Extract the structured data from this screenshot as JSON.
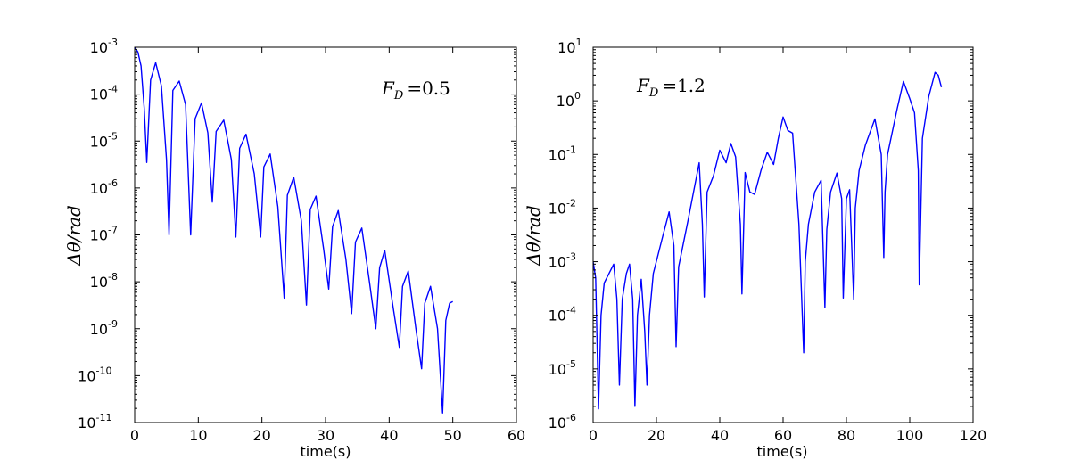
{
  "chart_data": [
    {
      "type": "line",
      "xlabel": "time(s)",
      "ylabel": "Δθ/rad",
      "annotation": {
        "text": "F_D =0.5",
        "symbol": "F",
        "subscript": "D",
        "value": "=0.5"
      },
      "xlim": [
        0,
        60
      ],
      "ylim": [
        1e-11,
        0.001
      ],
      "yscale": "log",
      "xticks": [
        "0",
        "10",
        "20",
        "30",
        "40",
        "50",
        "60"
      ],
      "yticks": [
        {
          "base": "10",
          "exp": "-11"
        },
        {
          "base": "10",
          "exp": "-10"
        },
        {
          "base": "10",
          "exp": "-9"
        },
        {
          "base": "10",
          "exp": "-8"
        },
        {
          "base": "10",
          "exp": "-7"
        },
        {
          "base": "10",
          "exp": "-6"
        },
        {
          "base": "10",
          "exp": "-5"
        },
        {
          "base": "10",
          "exp": "-4"
        },
        {
          "base": "10",
          "exp": "-3"
        }
      ],
      "color": "#0000ff",
      "series": [
        {
          "x": [
            0,
            0.5,
            1.0,
            1.5,
            1.9,
            2.5,
            3.3,
            4.2,
            5.0,
            5.4,
            6.0,
            7.0,
            8.0,
            8.8,
            9.5,
            10.5,
            11.5,
            12.2,
            12.8,
            14.0,
            15.2,
            15.9,
            16.5,
            17.5,
            18.8,
            19.8,
            20.3,
            21.3,
            22.5,
            23.5,
            24.0,
            25.0,
            26.2,
            27.0,
            27.6,
            28.5,
            29.7,
            30.5,
            31.1,
            32.0,
            33.2,
            34.1,
            34.7,
            35.7,
            36.9,
            37.9,
            38.5,
            39.3,
            40.6,
            41.6,
            42.1,
            43.0,
            44.2,
            45.1,
            45.6,
            46.5,
            47.6,
            48.4,
            48.9,
            49.5,
            50.0
          ],
          "y": [
            0.001,
            0.0008,
            0.0004,
            5e-05,
            3.5e-06,
            0.0002,
            0.00047,
            0.00015,
            4e-06,
            1e-07,
            0.00012,
            0.00019,
            6e-05,
            1e-07,
            3e-05,
            6.5e-05,
            1.5e-05,
            5e-07,
            1.6e-05,
            2.8e-05,
            4e-06,
            9e-08,
            7e-06,
            1.4e-05,
            2e-06,
            9e-08,
            2.8e-06,
            5.3e-06,
            4e-07,
            4.5e-09,
            7e-07,
            1.7e-06,
            2e-07,
            3.2e-09,
            3.5e-07,
            6.7e-07,
            5e-08,
            7e-09,
            1.5e-07,
            3.3e-07,
            3e-08,
            2.1e-09,
            7e-08,
            1.4e-07,
            1e-08,
            1e-09,
            2e-08,
            4.7e-08,
            3e-09,
            4e-10,
            8e-09,
            1.7e-08,
            1e-09,
            1.4e-10,
            3.5e-09,
            8e-09,
            1e-09,
            1.6e-11,
            1.5e-09,
            3.5e-09,
            3.8e-09
          ]
        }
      ]
    },
    {
      "type": "line",
      "xlabel": "time(s)",
      "ylabel": "Δθ/rad",
      "annotation": {
        "text": "F_D =1.2",
        "symbol": "F",
        "subscript": "D",
        "value": "=1.2"
      },
      "xlim": [
        0,
        120
      ],
      "ylim": [
        1e-06,
        10
      ],
      "yscale": "log",
      "xticks": [
        "0",
        "20",
        "40",
        "60",
        "80",
        "100",
        "120"
      ],
      "yticks": [
        {
          "base": "10",
          "exp": "-6"
        },
        {
          "base": "10",
          "exp": "-5"
        },
        {
          "base": "10",
          "exp": "-4"
        },
        {
          "base": "10",
          "exp": "-3"
        },
        {
          "base": "10",
          "exp": "-2"
        },
        {
          "base": "10",
          "exp": "-1"
        },
        {
          "base": "10",
          "exp": ""
        },
        {
          "base": "10",
          "exp": "1"
        }
      ],
      "ytick_plain": {
        "6": "10",
        "7": "10"
      },
      "color": "#0000ff",
      "series": [
        {
          "x": [
            0,
            0.8,
            1.7,
            2.5,
            3.5,
            5.0,
            6.5,
            7.5,
            8.3,
            9.2,
            10.5,
            11.5,
            12.5,
            13.2,
            14.0,
            15.2,
            16.3,
            17.0,
            17.8,
            19.0,
            22.0,
            24.0,
            25.5,
            26.2,
            27.0,
            30.0,
            33.5,
            34.5,
            35.1,
            36.0,
            38.0,
            40.0,
            42.0,
            43.5,
            45.0,
            46.5,
            47.0,
            48.0,
            49.5,
            51.0,
            53.0,
            55.0,
            57.0,
            58.5,
            60.0,
            61.5,
            63.0,
            65.0,
            66.5,
            67.0,
            68.0,
            70.0,
            72.0,
            73.2,
            73.8,
            75.0,
            77.0,
            78.5,
            79.0,
            80.0,
            81.0,
            82.3,
            82.8,
            84.0,
            86.0,
            89.0,
            91.0,
            91.8,
            92.2,
            93.0,
            96.0,
            98.0,
            100.0,
            101.5,
            102.7,
            103.0,
            104.0,
            106.0,
            108.0,
            109.0,
            110.0
          ],
          "y": [
            0.001,
            0.0005,
            1.8e-06,
            0.0001,
            0.0004,
            0.0006,
            0.0009,
            0.0002,
            5e-06,
            0.0002,
            0.0006,
            0.0009,
            0.0002,
            2e-06,
            0.0001,
            0.00047,
            5e-05,
            5e-06,
            0.0001,
            0.0006,
            0.003,
            0.0085,
            0.002,
            2.6e-05,
            0.0008,
            0.006,
            0.07,
            0.005,
            0.00022,
            0.02,
            0.04,
            0.12,
            0.07,
            0.16,
            0.09,
            0.005,
            0.00025,
            0.046,
            0.02,
            0.018,
            0.05,
            0.11,
            0.065,
            0.2,
            0.5,
            0.28,
            0.25,
            0.005,
            2e-05,
            0.001,
            0.005,
            0.02,
            0.033,
            0.00014,
            0.004,
            0.02,
            0.045,
            0.015,
            0.00021,
            0.015,
            0.022,
            0.0002,
            0.01,
            0.05,
            0.15,
            0.46,
            0.1,
            0.0012,
            0.02,
            0.1,
            0.7,
            2.3,
            1.1,
            0.6,
            0.05,
            0.00037,
            0.2,
            1.2,
            3.4,
            3.0,
            1.8
          ]
        }
      ]
    }
  ]
}
